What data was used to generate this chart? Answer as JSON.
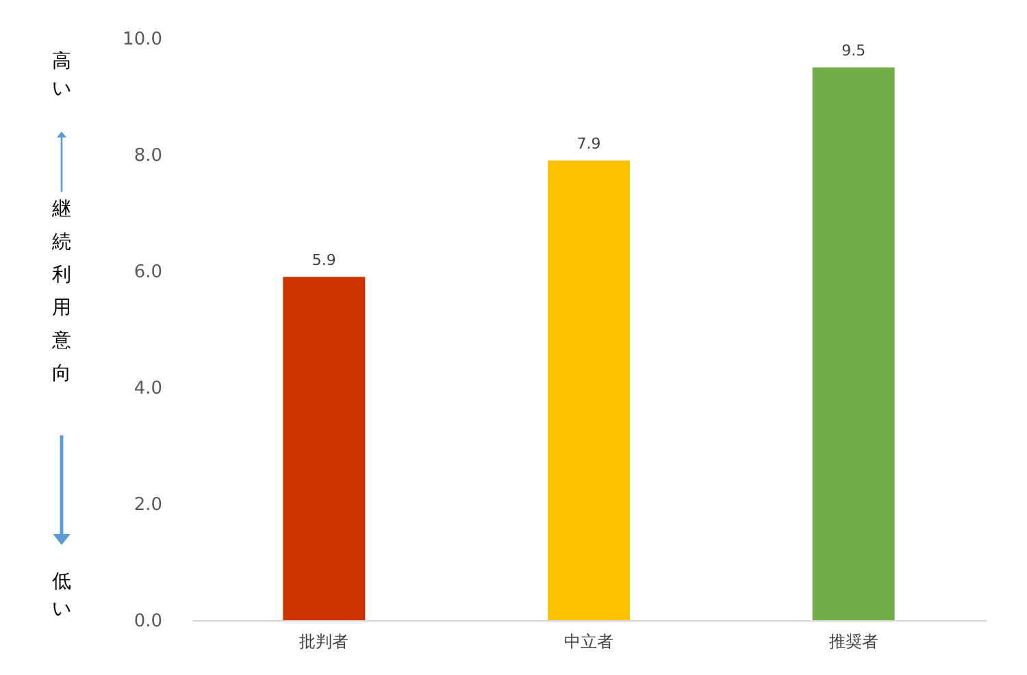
{
  "chart_data": {
    "type": "bar",
    "ylabel": "継続利用意向",
    "annotations": [
      "高い",
      "低い"
    ],
    "categories": [
      "批判者",
      "中立者",
      "推奨者"
    ],
    "values": [
      5.9,
      7.9,
      9.5
    ],
    "colors": [
      "#cc3300",
      "#ffc000",
      "#70ad47"
    ],
    "ylim": [
      0,
      10
    ],
    "yticks": [
      {
        "value": 0,
        "label": "0.0"
      },
      {
        "value": 2,
        "label": "2.0"
      },
      {
        "value": 4,
        "label": "4.0"
      },
      {
        "value": 6,
        "label": "6.0"
      },
      {
        "value": 8,
        "label": "8.0"
      },
      {
        "value": 10,
        "label": "10.0"
      }
    ],
    "data_labels": true,
    "grid": false
  }
}
